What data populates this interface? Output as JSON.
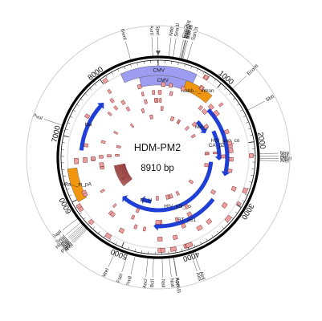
{
  "plasmid": {
    "name": "HDM-PM2",
    "size_label": "8910 bp",
    "length": 8910
  },
  "colors": {
    "backbone": "#000000",
    "cds": "#1f3fd6",
    "promoter": "#9c9cf0",
    "misc": "#f0960f",
    "site_fill": "#e8a0a0",
    "site_stroke": "#8a2a2a"
  },
  "ticks": [
    "1000",
    "2000",
    "3000",
    "4000",
    "5000",
    "6000",
    "7000",
    "8000"
  ],
  "restriction_sites": [
    {
      "label": "SnaBI",
      "pos": 210
    },
    {
      "label": "EcoICRI",
      "pos": 320
    },
    {
      "label": "SacI",
      "pos": 325
    },
    {
      "label": "CspCI",
      "pos": 300
    },
    {
      "label": "CspCI",
      "pos": 335
    },
    {
      "label": "BsmBI",
      "pos": 350
    },
    {
      "label": "NdeI",
      "pos": 150
    },
    {
      "label": "SanDI",
      "pos": 410
    },
    {
      "label": "AvrII",
      "pos": 8835
    },
    {
      "label": "SpeI",
      "pos": 8905
    },
    {
      "label": "BsmI",
      "pos": 8520
    },
    {
      "label": "EcoRI",
      "pos": 1170
    },
    {
      "label": "SbfI",
      "pos": 1540
    },
    {
      "label": "NspI",
      "pos": 2180
    },
    {
      "label": "AjuI",
      "pos": 2210
    },
    {
      "label": "PflMI",
      "pos": 2245
    },
    {
      "label": "AfeI",
      "pos": 2270
    },
    {
      "label": "AloI",
      "pos": 3950
    },
    {
      "label": "AloI",
      "pos": 3990
    },
    {
      "label": "KpnI",
      "pos": 4235
    },
    {
      "label": "Acc65I",
      "pos": 4240
    },
    {
      "label": "NotI",
      "pos": 4300
    },
    {
      "label": "NsiI",
      "pos": 4400
    },
    {
      "label": "BclI",
      "pos": 4520
    },
    {
      "label": "AscI",
      "pos": 4600
    },
    {
      "label": "PmlI",
      "pos": 4780
    },
    {
      "label": "FseI",
      "pos": 4890
    },
    {
      "label": "MreI",
      "pos": 5060
    },
    {
      "label": "XhoI",
      "pos": 5560
    },
    {
      "label": "PspXI",
      "pos": 5575
    },
    {
      "label": "AbsI",
      "pos": 5590
    },
    {
      "label": "SalI",
      "pos": 5610
    },
    {
      "label": "ClaI",
      "pos": 5630
    },
    {
      "label": "HindIII",
      "pos": 5650
    },
    {
      "label": "SwaI",
      "pos": 5690
    },
    {
      "label": "SapI",
      "pos": 5760
    },
    {
      "label": "PvuI",
      "pos": 7140
    }
  ],
  "features": [
    {
      "label": "CMV",
      "type": "promoter",
      "start": 8310,
      "end": 620,
      "ring": 0
    },
    {
      "label": "CMV",
      "type": "promoter",
      "start": 8580,
      "end": 500,
      "ring": 1
    },
    {
      "label": "Rabb..._Intron",
      "type": "misc",
      "start": 500,
      "end": 1020,
      "ring": 1
    },
    {
      "label": "bla",
      "type": "cds",
      "start": 6810,
      "end": 7800,
      "ring": 1
    },
    {
      "label": "Beta..._in_pA",
      "type": "misc",
      "start": 5960,
      "end": 6500,
      "ring": 0
    },
    {
      "label": "MA_1",
      "type": "cds",
      "start": 1180,
      "end": 1560,
      "ring": 4
    },
    {
      "label": "CA_p24",
      "type": "cds",
      "start": 1600,
      "end": 2300,
      "ring": 3
    },
    {
      "label": "HIV_gag_co",
      "type": "cds",
      "start": 1150,
      "end": 2620,
      "ring": 2
    },
    {
      "label": "HIV_pol_co",
      "type": "cds",
      "start": 2350,
      "end": 5500,
      "ring": 4
    },
    {
      "label": "RT_p51",
      "type": "cds",
      "start": 3150,
      "end": 4550,
      "ring": 2
    },
    {
      "label": "R...H",
      "type": "cds",
      "start": 4680,
      "end": 5000,
      "ring": 5
    }
  ]
}
